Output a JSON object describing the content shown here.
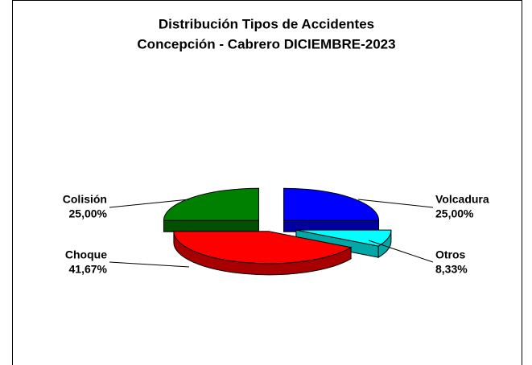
{
  "chart_data": {
    "type": "pie3d",
    "title": [
      "Distribución Tipos de Accidentes",
      "Concepción - Cabrero DICIEMBRE-2023"
    ],
    "categories": [
      "Volcadura",
      "Otros",
      "Choque",
      "Colisión"
    ],
    "values": [
      25,
      8.33,
      41.67,
      25
    ],
    "value_labels": [
      "25,00%",
      "8,33%",
      "41,67%",
      "25,00%"
    ],
    "colors": [
      "#0000ff",
      "#00ffff",
      "#ff0000",
      "#008000"
    ],
    "side_colors": [
      "#0000a0",
      "#00a8a8",
      "#a80000",
      "#005000"
    ]
  }
}
